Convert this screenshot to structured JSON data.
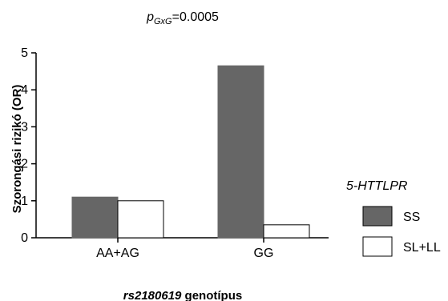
{
  "chart_data": {
    "type": "bar",
    "title_prefix": "p",
    "title_subscript": "GxG",
    "title_value": "=0.0005",
    "xlabel_italic": "rs2180619",
    "xlabel_rest": " genotípus",
    "ylabel": "Szorongási rizikó (OR)",
    "categories": [
      "AA+AG",
      "GG"
    ],
    "ylim": [
      0,
      5
    ],
    "yticks": [
      0,
      1,
      2,
      3,
      4,
      5
    ],
    "series": [
      {
        "name": "SS",
        "values": [
          1.1,
          4.65
        ],
        "color": "#666666"
      },
      {
        "name": "SL+LL",
        "values": [
          1.0,
          0.35
        ],
        "color": "#ffffff"
      }
    ],
    "legend_title": "5-HTTLPR",
    "legend_position": "right",
    "grid": false
  }
}
